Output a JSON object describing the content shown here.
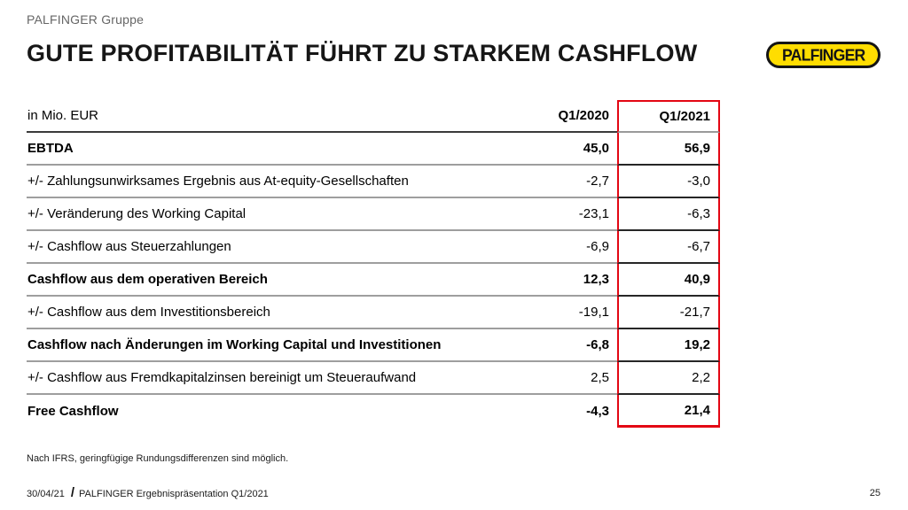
{
  "header": {
    "group_label": "PALFINGER Gruppe",
    "title": "GUTE PROFITABILITÄT FÜHRT ZU STARKEM CASHFLOW",
    "logo_text": "PALFINGER"
  },
  "colors": {
    "highlight_red": "#e30613",
    "logo_yellow": "#ffdd00"
  },
  "table": {
    "unit_label": "in Mio. EUR",
    "col_q1_2020": "Q1/2020",
    "col_q1_2021": "Q1/2021",
    "rows": [
      {
        "label": "EBTDA",
        "q1_2020": "45,0",
        "q1_2021": "56,9"
      },
      {
        "label": "+/- Zahlungsunwirksames Ergebnis aus At-equity-Gesellschaften",
        "q1_2020": "-2,7",
        "q1_2021": "-3,0"
      },
      {
        "label": "+/- Veränderung des Working Capital",
        "q1_2020": "-23,1",
        "q1_2021": "-6,3"
      },
      {
        "label": "+/- Cashflow aus Steuerzahlungen",
        "q1_2020": "-6,9",
        "q1_2021": "-6,7"
      },
      {
        "label": "Cashflow aus dem operativen Bereich",
        "q1_2020": "12,3",
        "q1_2021": "40,9"
      },
      {
        "label": "+/- Cashflow aus dem Investitionsbereich",
        "q1_2020": "-19,1",
        "q1_2021": "-21,7"
      },
      {
        "label": "Cashflow nach Änderungen im Working Capital und Investitionen",
        "q1_2020": "-6,8",
        "q1_2021": "19,2"
      },
      {
        "label": "+/- Cashflow aus Fremdkapitalzinsen bereinigt um Steueraufwand",
        "q1_2020": "2,5",
        "q1_2021": "2,2"
      },
      {
        "label": "Free Cashflow",
        "q1_2020": "-4,3",
        "q1_2021": "21,4"
      }
    ]
  },
  "footnote": "Nach IFRS, geringfügige Rundungsdifferenzen sind möglich.",
  "footer": {
    "date": "30/04/21",
    "separator": "/",
    "presentation": "PALFINGER Ergebnispräsentation Q1/2021",
    "page_number": "25"
  }
}
